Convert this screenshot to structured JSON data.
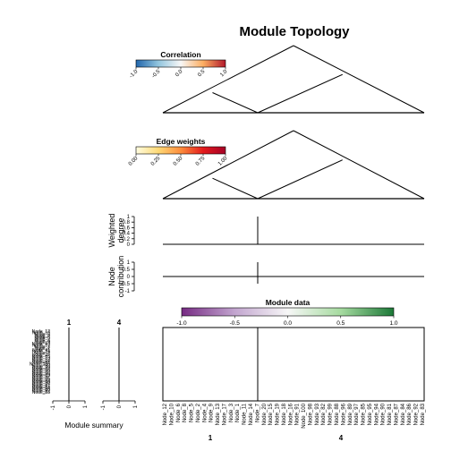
{
  "chart_data": {
    "type": "network-topology",
    "title": "Module Topology",
    "modules": [
      "1",
      "4"
    ],
    "correlation_legend": {
      "title": "Correlation",
      "ticks": [
        "-1.0",
        "-0.5",
        "0.0",
        "0.5",
        "1.0"
      ],
      "range": [
        -1.0,
        1.0
      ],
      "colors": [
        "#2166ac",
        "#92c5de",
        "#f7f7f7",
        "#fdae61",
        "#b2182b"
      ]
    },
    "edge_legend": {
      "title": "Edge weights",
      "ticks": [
        "0.00",
        "0.25",
        "0.50",
        "0.75",
        "1.00"
      ],
      "range": [
        0.0,
        1.0
      ],
      "colors": [
        "#fffde0",
        "#fed976",
        "#fd8d3c",
        "#e31a1c",
        "#a50026"
      ]
    },
    "weighted_degree": {
      "ylabel": "Weighted\ndegree",
      "ticks": [
        "0",
        "0.2",
        "0.4",
        "0.6",
        "0.8",
        "1"
      ],
      "ylim": [
        0,
        1
      ]
    },
    "node_contribution": {
      "ylabel": "Node\ncontribution",
      "ticks": [
        "-1",
        "-0.5",
        "0",
        "0.5",
        "1"
      ],
      "ylim": [
        -1,
        1
      ]
    },
    "module_data_legend": {
      "title": "Module data",
      "ticks": [
        "-1.0",
        "-0.5",
        "0.0",
        "0.5",
        "1.0"
      ],
      "range": [
        -1.0,
        1.0
      ],
      "colors": [
        "#762a83",
        "#c2a5cf",
        "#f7f7f7",
        "#a6dba0",
        "#1b7837"
      ]
    },
    "module_summary": {
      "xlabel": "Module summary",
      "xticks": [
        "-1",
        "0",
        "1"
      ],
      "xlim": [
        -1,
        1
      ]
    },
    "nodes_module_1": [
      "Node_12",
      "Node_10",
      "Node_6",
      "Node_8",
      "Node_5",
      "Node_2",
      "Node_4",
      "Node_9",
      "Node_13",
      "Node_17",
      "Node_3",
      "Node_1",
      "Node_11",
      "Node_14",
      "Node_7",
      "Node_20",
      "Node_15",
      "Node_19",
      "Node_18",
      "Node_16"
    ],
    "nodes_module_4": [
      "Node_91",
      "Node_100",
      "Node_98",
      "Node_93",
      "Node_82",
      "Node_99",
      "Node_88",
      "Node_96",
      "Node_89",
      "Node_97",
      "Node_85",
      "Node_95",
      "Node_94",
      "Node_90",
      "Node_81",
      "Node_87",
      "Node_84",
      "Node_86",
      "Node_92",
      "Node_83"
    ]
  }
}
